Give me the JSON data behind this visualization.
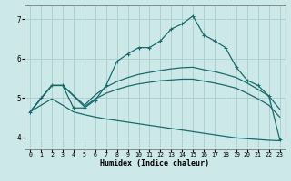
{
  "xlabel": "Humidex (Indice chaleur)",
  "bg_color": "#cce8e8",
  "grid_color": "#aacccc",
  "line_color": "#1a6b6b",
  "xlim": [
    -0.5,
    23.5
  ],
  "ylim": [
    3.7,
    7.35
  ],
  "xticks": [
    0,
    1,
    2,
    3,
    4,
    5,
    6,
    7,
    8,
    9,
    10,
    11,
    12,
    13,
    14,
    15,
    16,
    17,
    18,
    19,
    20,
    21,
    22,
    23
  ],
  "yticks": [
    4,
    5,
    6,
    7
  ],
  "line1_x": [
    0,
    1,
    2,
    3,
    4,
    5,
    6,
    7,
    8,
    9,
    10,
    11,
    12,
    13,
    14,
    15,
    16,
    17,
    18,
    19,
    20,
    21,
    22,
    23
  ],
  "line1_y": [
    4.65,
    5.0,
    5.32,
    5.32,
    4.75,
    4.75,
    4.95,
    5.32,
    5.93,
    6.12,
    6.28,
    6.28,
    6.45,
    6.75,
    6.88,
    7.08,
    6.6,
    6.45,
    6.28,
    5.78,
    5.45,
    5.32,
    5.05,
    3.95
  ],
  "line2_x": [
    0,
    2,
    3,
    5,
    6,
    7,
    8,
    9,
    10,
    11,
    12,
    13,
    14,
    15,
    16,
    17,
    18,
    19,
    20,
    21,
    22,
    23
  ],
  "line2_y": [
    4.65,
    5.32,
    5.32,
    4.82,
    5.08,
    5.28,
    5.42,
    5.52,
    5.6,
    5.65,
    5.7,
    5.74,
    5.77,
    5.78,
    5.72,
    5.67,
    5.6,
    5.52,
    5.38,
    5.22,
    5.05,
    4.72
  ],
  "line3_x": [
    0,
    2,
    3,
    5,
    6,
    7,
    8,
    9,
    10,
    11,
    12,
    13,
    14,
    15,
    16,
    17,
    18,
    19,
    20,
    21,
    22,
    23
  ],
  "line3_y": [
    4.65,
    5.32,
    5.32,
    4.78,
    4.98,
    5.12,
    5.22,
    5.3,
    5.36,
    5.4,
    5.44,
    5.46,
    5.48,
    5.48,
    5.43,
    5.38,
    5.32,
    5.25,
    5.12,
    4.98,
    4.82,
    4.52
  ],
  "line4_x": [
    0,
    1,
    2,
    3,
    4,
    5,
    6,
    7,
    8,
    9,
    10,
    11,
    12,
    13,
    14,
    15,
    16,
    17,
    18,
    19,
    20,
    21,
    22,
    23
  ],
  "line4_y": [
    4.65,
    4.82,
    4.98,
    4.82,
    4.65,
    4.58,
    4.52,
    4.47,
    4.43,
    4.39,
    4.35,
    4.31,
    4.27,
    4.23,
    4.19,
    4.15,
    4.11,
    4.07,
    4.03,
    3.99,
    3.97,
    3.95,
    3.93,
    3.92
  ]
}
